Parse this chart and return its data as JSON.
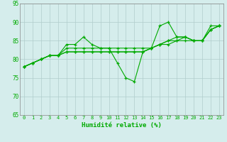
{
  "xlabel": "Humidité relative (%)",
  "xlim_min": -0.5,
  "xlim_max": 23.5,
  "ylim_min": 65,
  "ylim_max": 95,
  "yticks": [
    65,
    70,
    75,
    80,
    85,
    90,
    95
  ],
  "xticks": [
    0,
    1,
    2,
    3,
    4,
    5,
    6,
    7,
    8,
    9,
    10,
    11,
    12,
    13,
    14,
    15,
    16,
    17,
    18,
    19,
    20,
    21,
    22,
    23
  ],
  "background_color": "#d5edec",
  "grid_color": "#b0cccc",
  "line_color": "#00aa00",
  "lines": [
    [
      78,
      79,
      80,
      81,
      81,
      84,
      84,
      86,
      84,
      83,
      83,
      79,
      75,
      74,
      82,
      83,
      89,
      90,
      86,
      86,
      85,
      85,
      89,
      89
    ],
    [
      78,
      79,
      80,
      81,
      81,
      83,
      83,
      83,
      83,
      83,
      83,
      83,
      83,
      83,
      83,
      83,
      84,
      85,
      86,
      86,
      85,
      85,
      88,
      89
    ],
    [
      78,
      79,
      80,
      81,
      81,
      82,
      82,
      82,
      82,
      82,
      82,
      82,
      82,
      82,
      82,
      83,
      84,
      85,
      85,
      86,
      85,
      85,
      88,
      89
    ],
    [
      78,
      79,
      80,
      81,
      81,
      82,
      82,
      82,
      82,
      82,
      82,
      82,
      82,
      82,
      82,
      83,
      84,
      84,
      85,
      85,
      85,
      85,
      88,
      89
    ]
  ]
}
